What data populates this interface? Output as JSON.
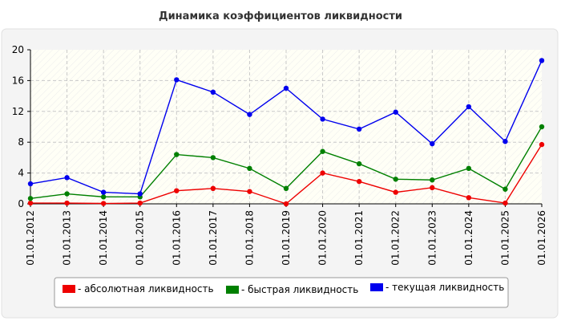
{
  "chart_data": {
    "type": "line",
    "title": "Динамика коэффициентов ликвидности",
    "xlabel": "",
    "ylabel": "",
    "categories": [
      "01.01.2012",
      "01.01.2013",
      "01.01.2014",
      "01.01.2015",
      "01.01.2016",
      "01.01.2017",
      "01.01.2018",
      "01.01.2019",
      "01.01.2020",
      "01.01.2021",
      "01.01.2022",
      "01.01.2023",
      "01.01.2024",
      "01.01.2025",
      "01.01.2026"
    ],
    "ylim": [
      0,
      20
    ],
    "yticks": [
      "0",
      "4",
      "8",
      "12",
      "16",
      "20"
    ],
    "grid": true,
    "legend_position": "bottom",
    "series": [
      {
        "name": "- абсолютная ликвидность",
        "color": "#ee0000",
        "values": [
          0.1,
          0.1,
          0.05,
          0.1,
          1.7,
          2.0,
          1.6,
          0.0,
          4.0,
          2.9,
          1.5,
          2.1,
          0.8,
          0.1,
          7.7
        ]
      },
      {
        "name": "- быстрая ликвидность",
        "color": "#008000",
        "values": [
          0.7,
          1.3,
          0.9,
          0.9,
          6.4,
          6.0,
          4.6,
          2.0,
          6.8,
          5.2,
          3.2,
          3.1,
          4.6,
          1.9,
          10.0
        ]
      },
      {
        "name": "- текущая ликвидность",
        "color": "#0000ee",
        "values": [
          2.6,
          3.4,
          1.5,
          1.3,
          16.1,
          14.5,
          11.6,
          15.0,
          11.0,
          9.7,
          11.9,
          7.8,
          12.6,
          8.1,
          18.6
        ]
      }
    ]
  }
}
